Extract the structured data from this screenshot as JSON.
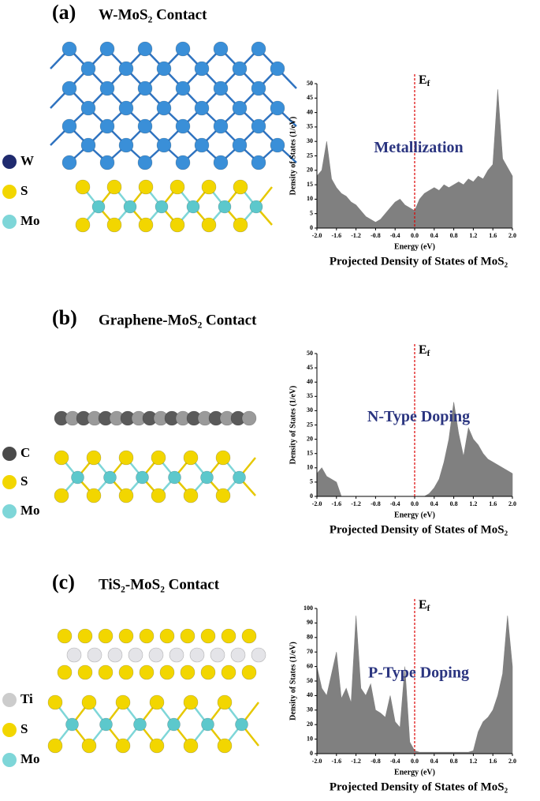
{
  "panels": [
    {
      "label": "(a)",
      "title": "W-MoS₂ Contact",
      "species": [
        {
          "name": "W",
          "color": "#1f2a6e"
        },
        {
          "name": "S",
          "color": "#f2d600"
        },
        {
          "name": "Mo",
          "color": "#7ed6d8"
        }
      ]
    },
    {
      "label": "(b)",
      "title": "Graphene-MoS₂ Contact",
      "species": [
        {
          "name": "C",
          "color": "#4a4a4a"
        },
        {
          "name": "S",
          "color": "#f2d600"
        },
        {
          "name": "Mo",
          "color": "#7ed6d8"
        }
      ]
    },
    {
      "label": "(c)",
      "title": "TiS₂-MoS₂ Contact",
      "species": [
        {
          "name": "Ti",
          "color": "#cccccc"
        },
        {
          "name": "S",
          "color": "#f2d600"
        },
        {
          "name": "Mo",
          "color": "#7ed6d8"
        }
      ]
    }
  ],
  "chart_data": [
    {
      "type": "area",
      "color": "#808080",
      "x": [
        -2,
        -1.9,
        -1.8,
        -1.7,
        -1.6,
        -1.5,
        -1.4,
        -1.3,
        -1.2,
        -1.1,
        -1,
        -0.9,
        -0.8,
        -0.7,
        -0.6,
        -0.5,
        -0.4,
        -0.3,
        -0.2,
        -0.1,
        0,
        0.1,
        0.2,
        0.3,
        0.4,
        0.5,
        0.6,
        0.7,
        0.8,
        0.9,
        1,
        1.1,
        1.2,
        1.3,
        1.4,
        1.5,
        1.6,
        1.7,
        1.8,
        1.9,
        2
      ],
      "values": [
        18,
        20,
        30,
        17,
        14,
        12,
        11,
        9,
        8,
        6,
        4,
        3,
        2,
        3,
        5,
        7,
        9,
        10,
        8,
        7,
        6,
        10,
        12,
        13,
        14,
        13,
        15,
        14,
        15,
        16,
        15,
        17,
        16,
        18,
        17,
        20,
        22,
        48,
        24,
        21,
        18
      ],
      "xlim": [
        -2,
        2
      ],
      "ylim": [
        0,
        50
      ],
      "xticks": [
        {
          "value": -2,
          "label": "-2.0"
        },
        {
          "value": -1.6,
          "label": "-1.6"
        },
        {
          "value": -1.2,
          "label": "-1.2"
        },
        {
          "value": -0.8,
          "label": "-0.8"
        },
        {
          "value": -0.4,
          "label": "-0.4"
        },
        {
          "value": 0,
          "label": "0.0"
        },
        0.4,
        0.8,
        1.2,
        1.6,
        {
          "value": 2,
          "label": "2.0"
        }
      ],
      "yticks": [
        0,
        5,
        10,
        15,
        20,
        25,
        30,
        35,
        40,
        45,
        50
      ],
      "xlabel": "Energy (eV)",
      "ylabel": "Density of States (1/eV)",
      "caption": "Projected Density of States of MoS₂",
      "annotation": "Metallization",
      "ef_label": {
        "main": "E",
        "sub": "f"
      },
      "vline": 0
    },
    {
      "type": "area",
      "color": "#808080",
      "x": [
        -2,
        -1.9,
        -1.8,
        -1.7,
        -1.6,
        -1.5,
        -1.4,
        -1.3,
        -1.2,
        -1.1,
        -1,
        -0.9,
        -0.8,
        -0.7,
        -0.6,
        -0.5,
        -0.4,
        -0.3,
        -0.2,
        -0.1,
        0,
        0.1,
        0.2,
        0.3,
        0.4,
        0.5,
        0.6,
        0.7,
        0.8,
        0.9,
        1,
        1.1,
        1.2,
        1.3,
        1.4,
        1.5,
        1.6,
        1.7,
        1.8,
        1.9,
        2
      ],
      "values": [
        8,
        10,
        7,
        6,
        5,
        0,
        0,
        0,
        0,
        0,
        0,
        0,
        0,
        0,
        0,
        0,
        0,
        0,
        0,
        0,
        0,
        0,
        0,
        1,
        3,
        6,
        12,
        20,
        33,
        22,
        14,
        24,
        20,
        18,
        15,
        13,
        12,
        11,
        10,
        9,
        8
      ],
      "xlim": [
        -2,
        2
      ],
      "ylim": [
        0,
        50
      ],
      "xticks": [
        {
          "value": -2,
          "label": "-2.0"
        },
        {
          "value": -1.6,
          "label": "-1.6"
        },
        {
          "value": -1.2,
          "label": "-1.2"
        },
        {
          "value": -0.8,
          "label": "-0.8"
        },
        {
          "value": -0.4,
          "label": "-0.4"
        },
        {
          "value": 0,
          "label": "0.0"
        },
        0.4,
        0.8,
        1.2,
        1.6,
        {
          "value": 2,
          "label": "2.0"
        }
      ],
      "yticks": [
        0,
        5,
        10,
        15,
        20,
        25,
        30,
        35,
        40,
        45,
        50
      ],
      "xlabel": "Energy (eV)",
      "ylabel": "Density of States (1/eV)",
      "caption": "Projected Density of States of MoS₂",
      "annotation": "N-Type Doping",
      "ef_label": {
        "main": "E",
        "sub": "f"
      },
      "vline": 0
    },
    {
      "type": "area",
      "color": "#808080",
      "x": [
        -2,
        -1.9,
        -1.8,
        -1.7,
        -1.6,
        -1.5,
        -1.4,
        -1.3,
        -1.2,
        -1.1,
        -1,
        -0.9,
        -0.8,
        -0.7,
        -0.6,
        -0.5,
        -0.4,
        -0.3,
        -0.2,
        -0.1,
        0,
        0.1,
        0.2,
        0.3,
        0.4,
        0.5,
        0.6,
        0.7,
        0.8,
        0.9,
        1,
        1.1,
        1.2,
        1.3,
        1.4,
        1.5,
        1.6,
        1.7,
        1.8,
        1.9,
        2
      ],
      "values": [
        60,
        45,
        40,
        55,
        70,
        38,
        45,
        35,
        95,
        45,
        40,
        48,
        30,
        28,
        25,
        40,
        22,
        18,
        60,
        8,
        2,
        1,
        1,
        1,
        1,
        1,
        1,
        1,
        1,
        1,
        1,
        1,
        2,
        15,
        22,
        25,
        30,
        40,
        55,
        95,
        60
      ],
      "xlim": [
        -2,
        2
      ],
      "ylim": [
        0,
        100
      ],
      "xticks": [
        {
          "value": -2,
          "label": "-2.0"
        },
        {
          "value": -1.6,
          "label": "-1.6"
        },
        {
          "value": -1.2,
          "label": "-1.2"
        },
        {
          "value": -0.8,
          "label": "-0.8"
        },
        {
          "value": -0.4,
          "label": "-0.4"
        },
        {
          "value": 0,
          "label": "0.0"
        },
        0.4,
        0.8,
        1.2,
        1.6,
        {
          "value": 2,
          "label": "2.0"
        }
      ],
      "yticks": [
        0,
        10,
        20,
        30,
        40,
        50,
        60,
        70,
        80,
        90,
        100
      ],
      "xlabel": "Energy (eV)",
      "ylabel": "Density of States (1/eV)",
      "caption": "Projected Density of States of MoS₂",
      "annotation": "P-Type Doping",
      "ef_label": {
        "main": "E",
        "sub": "f"
      },
      "vline": 0
    }
  ]
}
